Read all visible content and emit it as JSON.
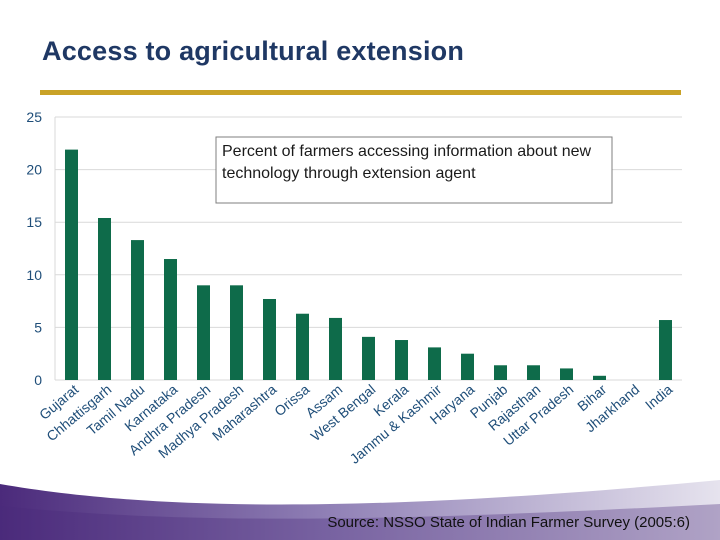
{
  "slide": {
    "title": "Access to agricultural extension",
    "source": "Source: NSSO State of Indian Farmer Survey (2005:6)"
  },
  "colors": {
    "bar": "#0e6b4a",
    "rule": "#c9a227",
    "title": "#1f3864",
    "axis_text": "#1f4e79",
    "grid": "#d9d9d9"
  },
  "chart_data": {
    "type": "bar",
    "title": "",
    "annotation": "Percent of farmers accessing information about new technology through extension agent",
    "xlabel": "",
    "ylabel": "",
    "ylim": [
      0,
      25
    ],
    "yticks": [
      0,
      5,
      10,
      15,
      20,
      25
    ],
    "grid": true,
    "categories": [
      "Gujarat",
      "Chhattisgarh",
      "Tamil Nadu",
      "Karnataka",
      "Andhra Pradesh",
      "Madhya Pradesh",
      "Maharashtra",
      "Orissa",
      "Assam",
      "West Bengal",
      "Kerala",
      "Jammu & Kashmir",
      "Haryana",
      "Punjab",
      "Rajasthan",
      "Uttar Pradesh",
      "Bihar",
      "Jharkhand",
      "India"
    ],
    "values": [
      21.9,
      15.4,
      13.3,
      11.5,
      9.0,
      9.0,
      7.7,
      6.3,
      5.9,
      4.1,
      3.8,
      3.1,
      2.5,
      1.4,
      1.4,
      1.1,
      0.4,
      0.0,
      5.7
    ]
  }
}
